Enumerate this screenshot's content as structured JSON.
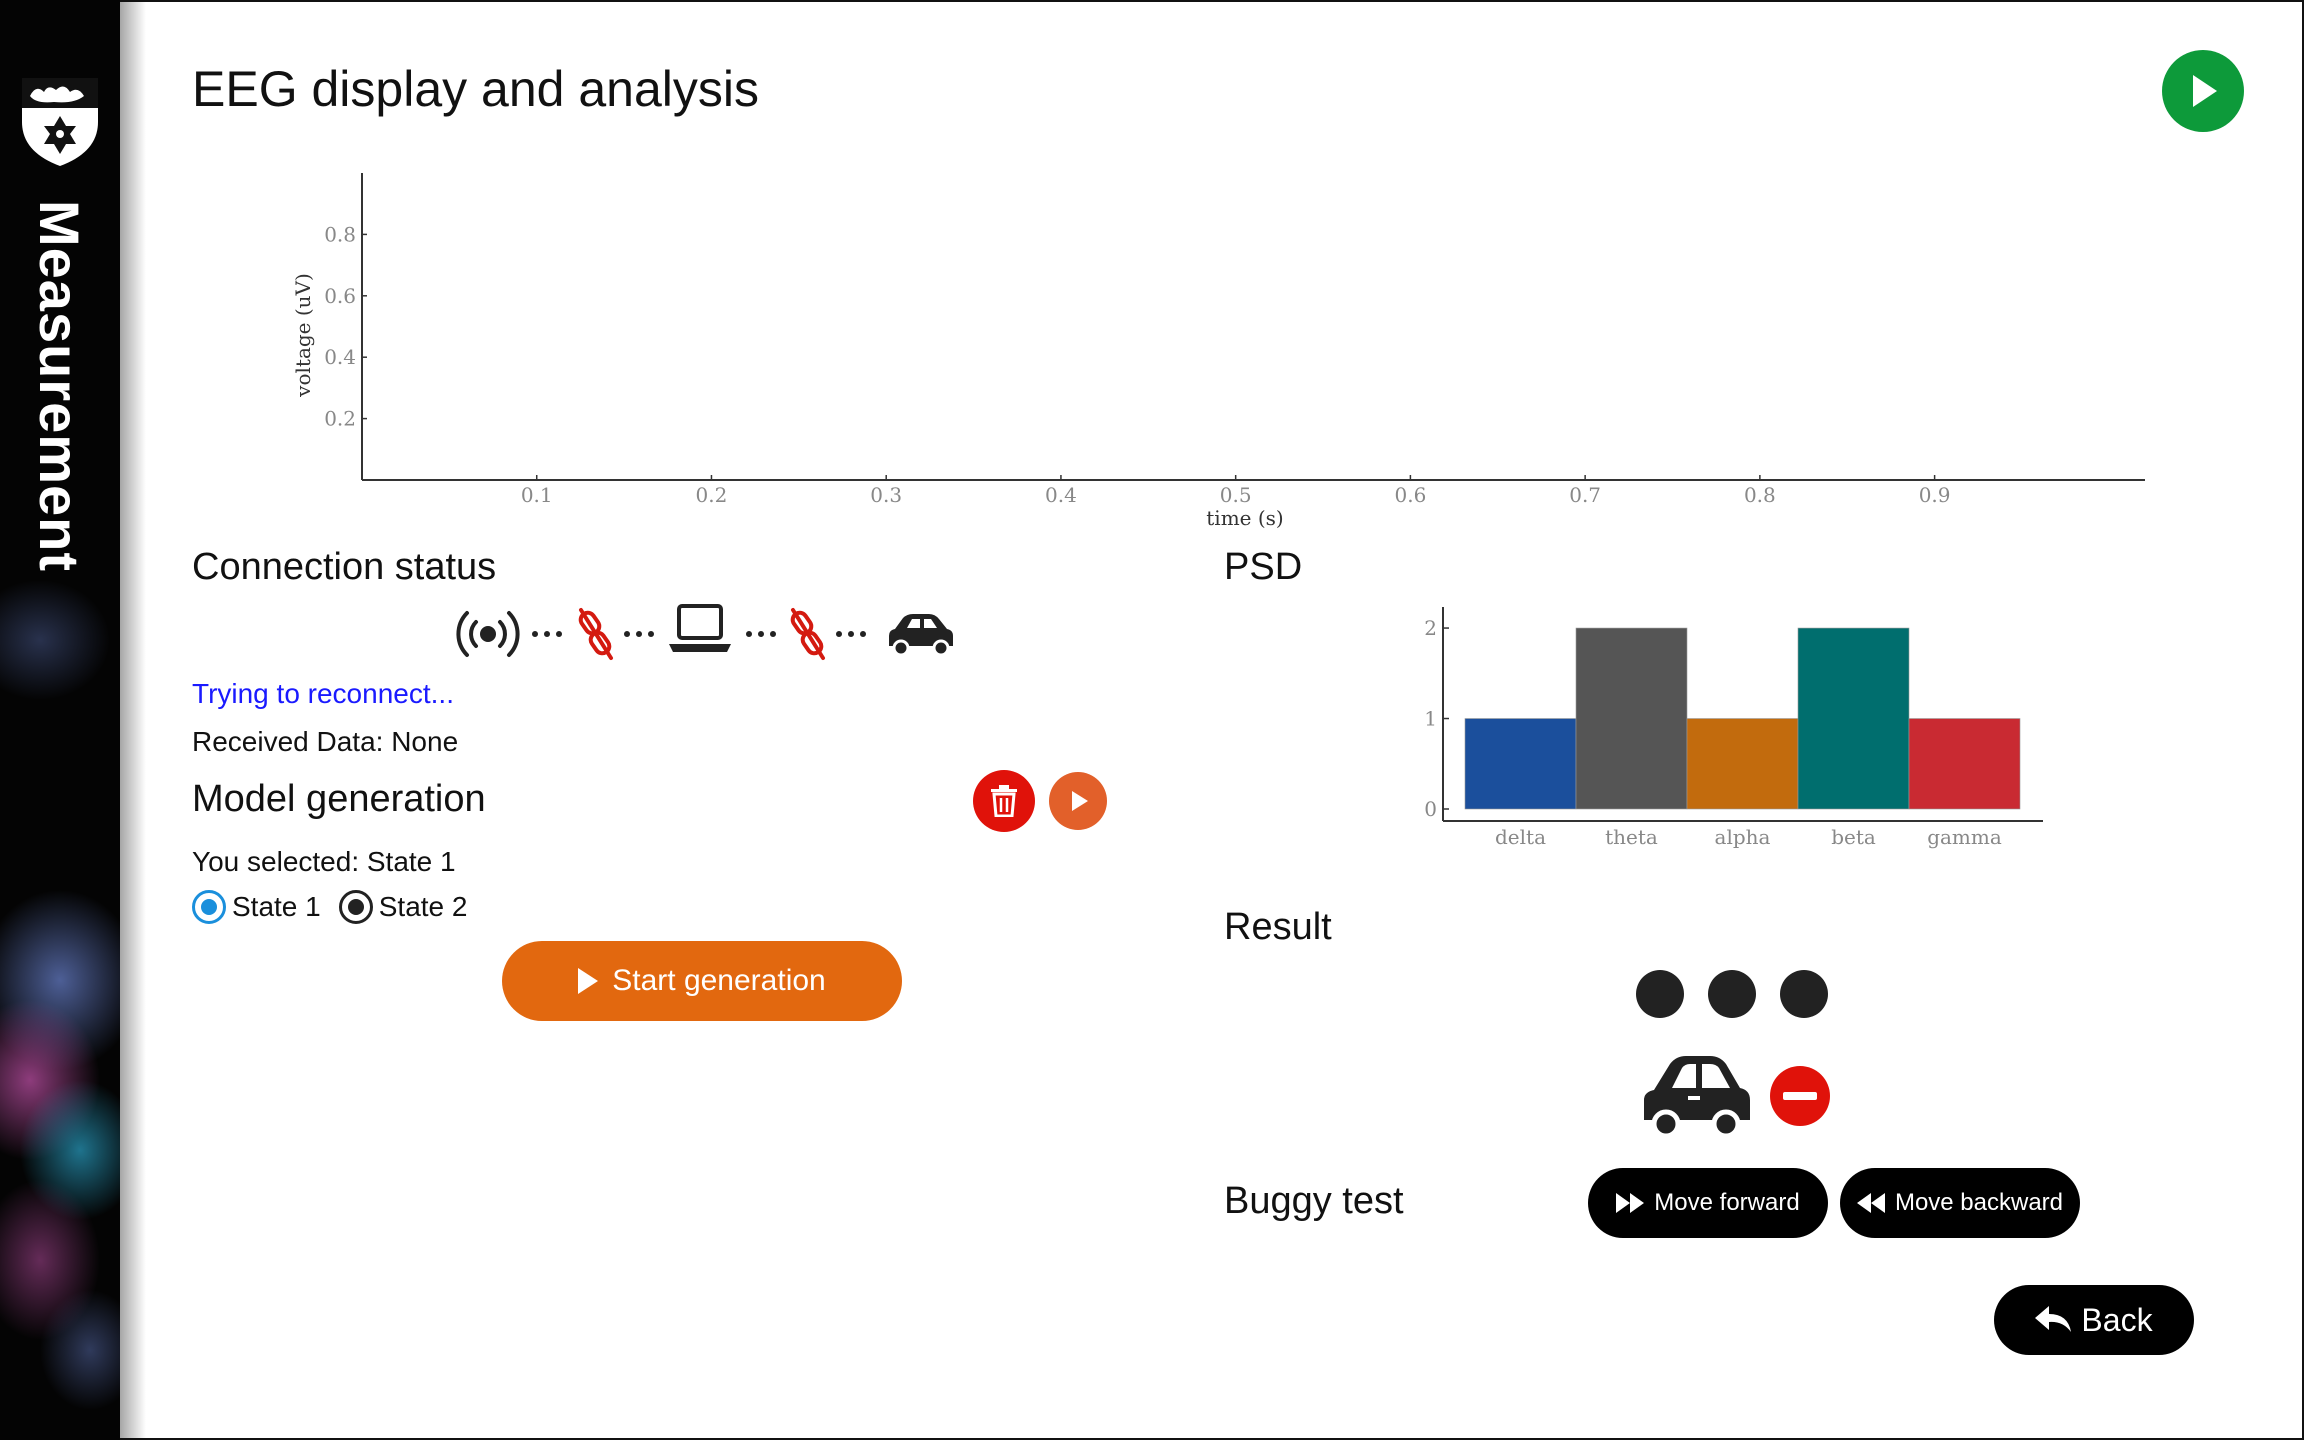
{
  "sidebar": {
    "title": "Measurement"
  },
  "header": {
    "title": "EEG display and analysis"
  },
  "eeg_chart": {
    "chart_data": {
      "type": "line",
      "title": "",
      "xlabel": "time (s)",
      "ylabel": "voltage (uV)",
      "xlim": [
        0,
        1.0
      ],
      "ylim": [
        0,
        1.0
      ],
      "x_ticks": [
        "0.1",
        "0.2",
        "0.3",
        "0.4",
        "0.5",
        "0.6",
        "0.7",
        "0.8",
        "0.9"
      ],
      "y_ticks": [
        "0.2",
        "0.4",
        "0.6",
        "0.8"
      ],
      "series": [],
      "grid": false
    }
  },
  "connection": {
    "title": "Connection status",
    "status_text": "Trying to reconnect...",
    "received_label": "Received Data: None",
    "chain_icons": [
      "broadcast-icon",
      "link-broken-icon",
      "laptop-icon",
      "link-broken-icon",
      "car-icon"
    ],
    "link_color": "#d41a10"
  },
  "model": {
    "title": "Model generation",
    "selected_text": "You selected: State 1",
    "options": [
      {
        "label": "State 1",
        "selected": true
      },
      {
        "label": "State 2",
        "selected": false
      }
    ],
    "start_label": "Start generation",
    "delete_color": "#e0120a",
    "play_color": "#e2602a"
  },
  "psd": {
    "title": "PSD",
    "chart_data": {
      "type": "bar",
      "title": "",
      "categories": [
        "delta",
        "theta",
        "alpha",
        "beta",
        "gamma"
      ],
      "values": [
        1,
        2,
        1,
        2,
        1
      ],
      "colors": [
        "#1b4f9c",
        "#555555",
        "#c26b0d",
        "#006e6e",
        "#c92a32"
      ],
      "ylim": [
        0,
        2.1
      ],
      "y_ticks": [
        "0",
        "1",
        "2"
      ]
    }
  },
  "result": {
    "title": "Result"
  },
  "buggy": {
    "title": "Buggy test",
    "forward_label": "Move forward",
    "backward_label": "Move backward"
  },
  "footer": {
    "back_label": "Back"
  },
  "colors": {
    "accent_orange": "#e2680f",
    "run_green": "#0d9a3a",
    "link_blue": "#1a1aff"
  }
}
